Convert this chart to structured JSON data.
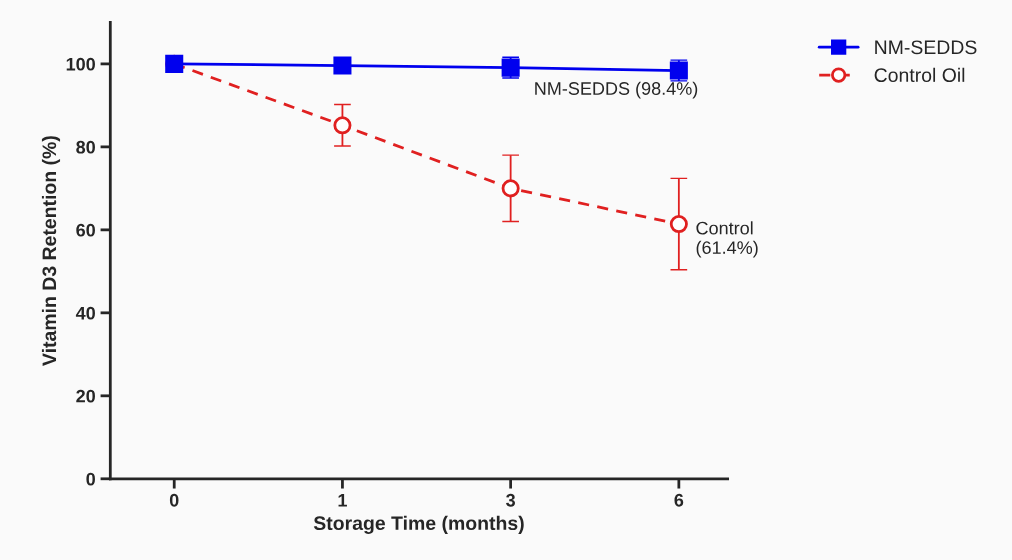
{
  "chart_data": {
    "type": "line",
    "xlabel": "Storage Time (months)",
    "ylabel": "Vitamin D3 Retention (%)",
    "categories": [
      "0",
      "1",
      "3",
      "6"
    ],
    "series": [
      {
        "name": "NM-SEDDS",
        "color": "#0000ee",
        "values": [
          100,
          99.6,
          99.1,
          98.4
        ],
        "errors": [
          null,
          null,
          2.5,
          2.5
        ],
        "marker": "square",
        "line_style": "solid"
      },
      {
        "name": "Control Oil",
        "color": "#e02020",
        "values": [
          100,
          85.2,
          70,
          61.4
        ],
        "errors": [
          null,
          5,
          8,
          11
        ],
        "marker": "circle",
        "line_style": "dashed"
      }
    ],
    "ylim": [
      0,
      110
    ],
    "yticks": [
      0,
      20,
      40,
      60,
      80,
      100
    ],
    "grid": false,
    "legend": "top right",
    "annotations": [
      {
        "text": "NM-SEDDS (98.4%)",
        "x": "6",
        "y": 98.4
      },
      {
        "text": "Control\n(61.4%)",
        "x": "6",
        "y": 61.4
      }
    ]
  }
}
